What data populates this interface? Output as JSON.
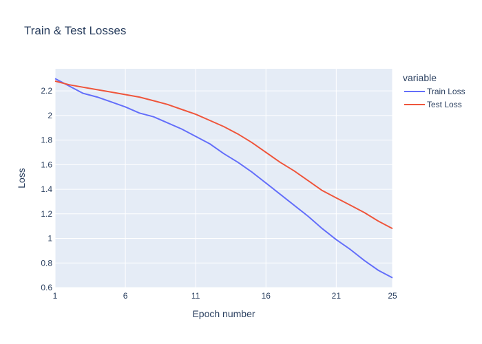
{
  "chart_data": {
    "type": "line",
    "title": "Train & Test Losses",
    "xlabel": "Epoch number",
    "ylabel": "Loss",
    "xlim": [
      1,
      25
    ],
    "ylim": [
      0.6,
      2.38
    ],
    "x_ticks": [
      1,
      6,
      11,
      16,
      21,
      25
    ],
    "y_ticks": [
      0.6,
      0.8,
      1,
      1.2,
      1.4,
      1.6,
      1.8,
      2,
      2.2
    ],
    "y_tick_labels": [
      "0.6",
      "0.8",
      "1",
      "1.2",
      "1.4",
      "1.6",
      "1.8",
      "2",
      "2.2"
    ],
    "grid": true,
    "legend": {
      "title": "variable",
      "position": "right"
    },
    "x": [
      1,
      2,
      3,
      4,
      5,
      6,
      7,
      8,
      9,
      10,
      11,
      12,
      13,
      14,
      15,
      16,
      17,
      18,
      19,
      20,
      21,
      22,
      23,
      24,
      25
    ],
    "series": [
      {
        "name": "Train Loss",
        "color": "#636efa",
        "values": [
          2.3,
          2.24,
          2.18,
          2.15,
          2.11,
          2.07,
          2.02,
          1.99,
          1.94,
          1.89,
          1.83,
          1.77,
          1.69,
          1.62,
          1.54,
          1.45,
          1.36,
          1.27,
          1.18,
          1.08,
          0.99,
          0.91,
          0.82,
          0.74,
          0.68
        ]
      },
      {
        "name": "Test Loss",
        "color": "#ef553b",
        "values": [
          2.28,
          2.25,
          2.23,
          2.21,
          2.19,
          2.17,
          2.15,
          2.12,
          2.09,
          2.05,
          2.01,
          1.96,
          1.91,
          1.85,
          1.78,
          1.7,
          1.62,
          1.55,
          1.47,
          1.39,
          1.33,
          1.27,
          1.21,
          1.14,
          1.08
        ]
      }
    ]
  }
}
